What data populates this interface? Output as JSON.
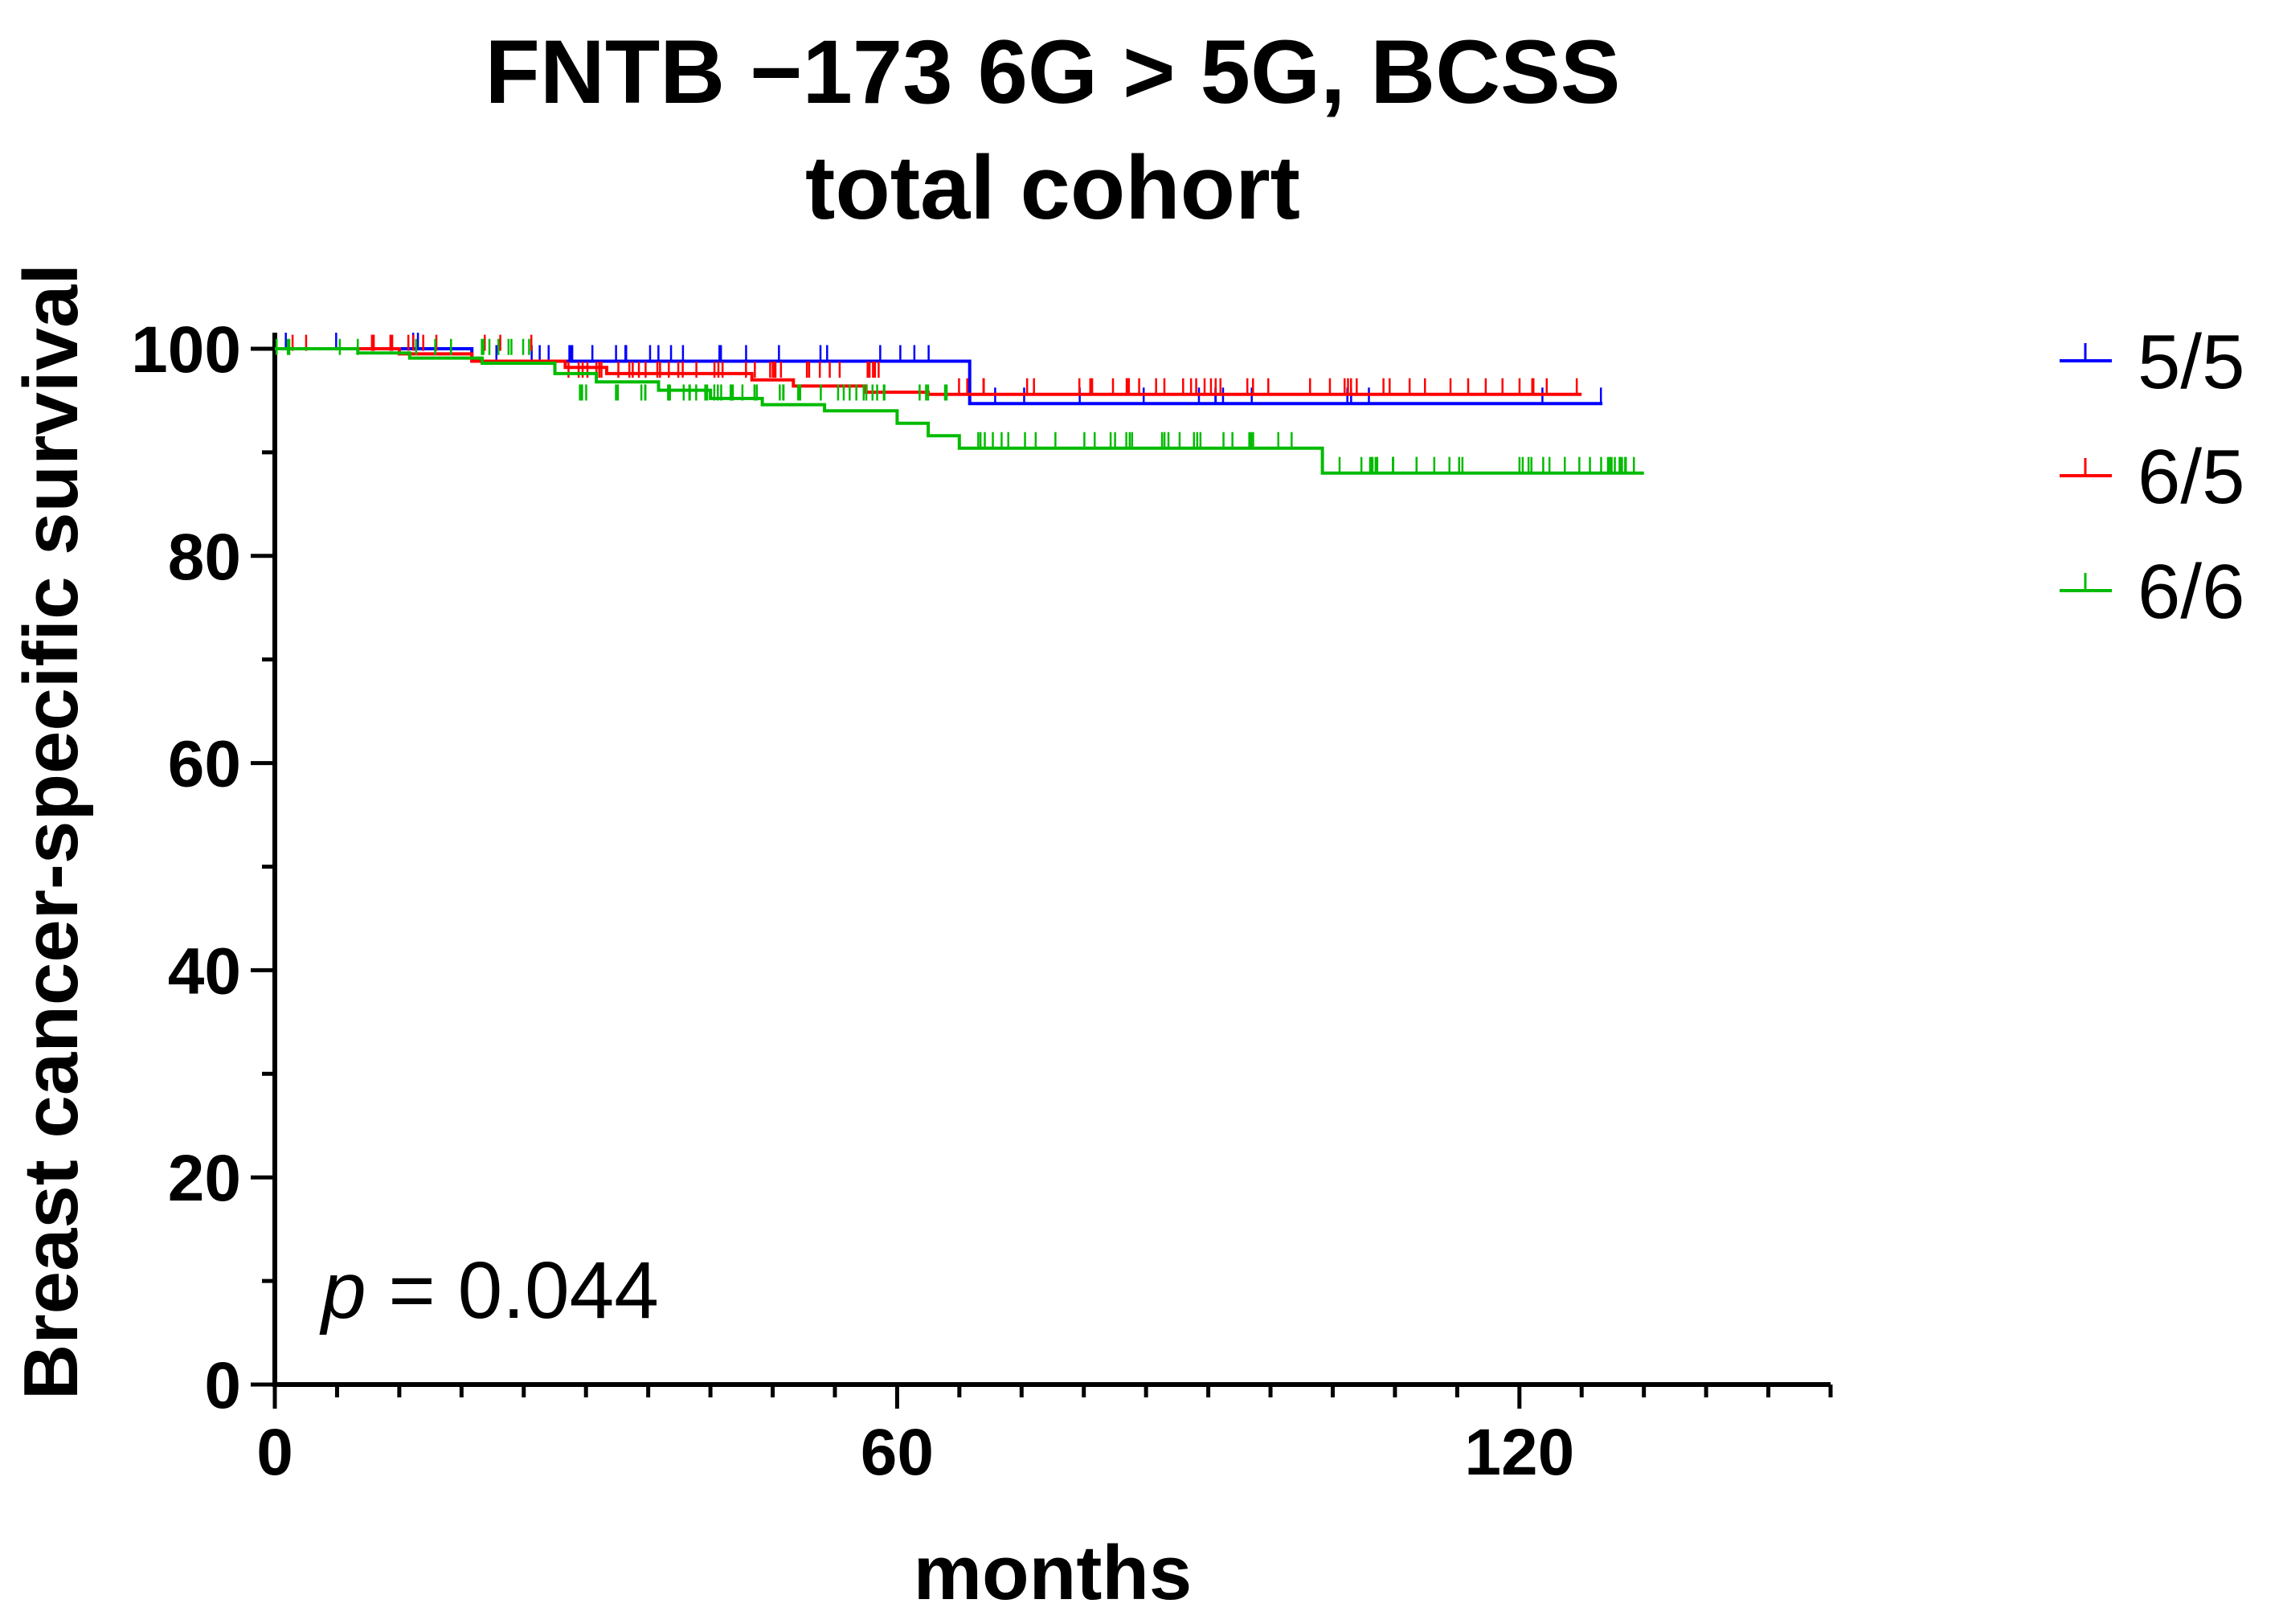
{
  "chart_data": {
    "type": "line",
    "title_line1": "FNTB −173 6G > 5G, BCSS",
    "title_line2": "total cohort",
    "xlabel": "months",
    "ylabel": "Breast cancer-specific survival",
    "xlim": [
      0,
      150
    ],
    "ylim": [
      0,
      100
    ],
    "x_major_ticks": [
      0,
      60,
      120
    ],
    "x_minor_step": 6,
    "y_major_ticks": [
      0,
      20,
      40,
      60,
      80,
      100
    ],
    "y_minor_step": 10,
    "grid": false,
    "legend_position": "right",
    "annotation": {
      "italic": "p",
      "rest": " = 0.044"
    },
    "series": [
      {
        "name": "5/5",
        "color": "#0000ff",
        "steps": [
          [
            0,
            100
          ],
          [
            19,
            100
          ],
          [
            19,
            98.8
          ],
          [
            67,
            98.8
          ],
          [
            67,
            94.7
          ],
          [
            128,
            94.7
          ]
        ],
        "censor_clusters": [
          [
            0,
            15,
            100,
            4
          ],
          [
            20,
            66,
            98.8,
            25
          ],
          [
            67,
            128,
            94.7,
            14
          ]
        ]
      },
      {
        "name": "6/5",
        "color": "#ff0000",
        "steps": [
          [
            0,
            100
          ],
          [
            12,
            100
          ],
          [
            12,
            99.5
          ],
          [
            19,
            99.5
          ],
          [
            19,
            98.8
          ],
          [
            28,
            98.8
          ],
          [
            28,
            98.2
          ],
          [
            32,
            98.2
          ],
          [
            32,
            97.6
          ],
          [
            46,
            97.6
          ],
          [
            46,
            97.0
          ],
          [
            50,
            97.0
          ],
          [
            50,
            96.4
          ],
          [
            57,
            96.4
          ],
          [
            57,
            95.8
          ],
          [
            63,
            95.8
          ],
          [
            63,
            95.6
          ],
          [
            126,
            95.6
          ]
        ],
        "censor_clusters": [
          [
            0,
            27,
            99.8,
            14
          ],
          [
            28,
            62,
            97.2,
            38
          ],
          [
            63,
            126,
            95.6,
            46
          ]
        ]
      },
      {
        "name": "6/6",
        "color": "#00bb00",
        "steps": [
          [
            0,
            100
          ],
          [
            8,
            100
          ],
          [
            8,
            99.6
          ],
          [
            13,
            99.6
          ],
          [
            13,
            99.1
          ],
          [
            20,
            99.1
          ],
          [
            20,
            98.6
          ],
          [
            27,
            98.6
          ],
          [
            27,
            97.6
          ],
          [
            31,
            97.6
          ],
          [
            31,
            96.8
          ],
          [
            37,
            96.8
          ],
          [
            37,
            96.0
          ],
          [
            42,
            96.0
          ],
          [
            42,
            95.2
          ],
          [
            47,
            95.2
          ],
          [
            47,
            94.6
          ],
          [
            53,
            94.6
          ],
          [
            53,
            94.0
          ],
          [
            60,
            94.0
          ],
          [
            60,
            92.8
          ],
          [
            63,
            92.8
          ],
          [
            63,
            91.6
          ],
          [
            66,
            91.6
          ],
          [
            66,
            90.4
          ],
          [
            101,
            90.4
          ],
          [
            101,
            88.0
          ],
          [
            132,
            88.0
          ]
        ],
        "censor_clusters": [
          [
            0,
            26,
            99.4,
            16
          ],
          [
            27,
            65,
            95.0,
            48
          ],
          [
            66,
            100,
            90.4,
            30
          ],
          [
            102,
            132,
            88.0,
            36
          ]
        ]
      }
    ]
  }
}
